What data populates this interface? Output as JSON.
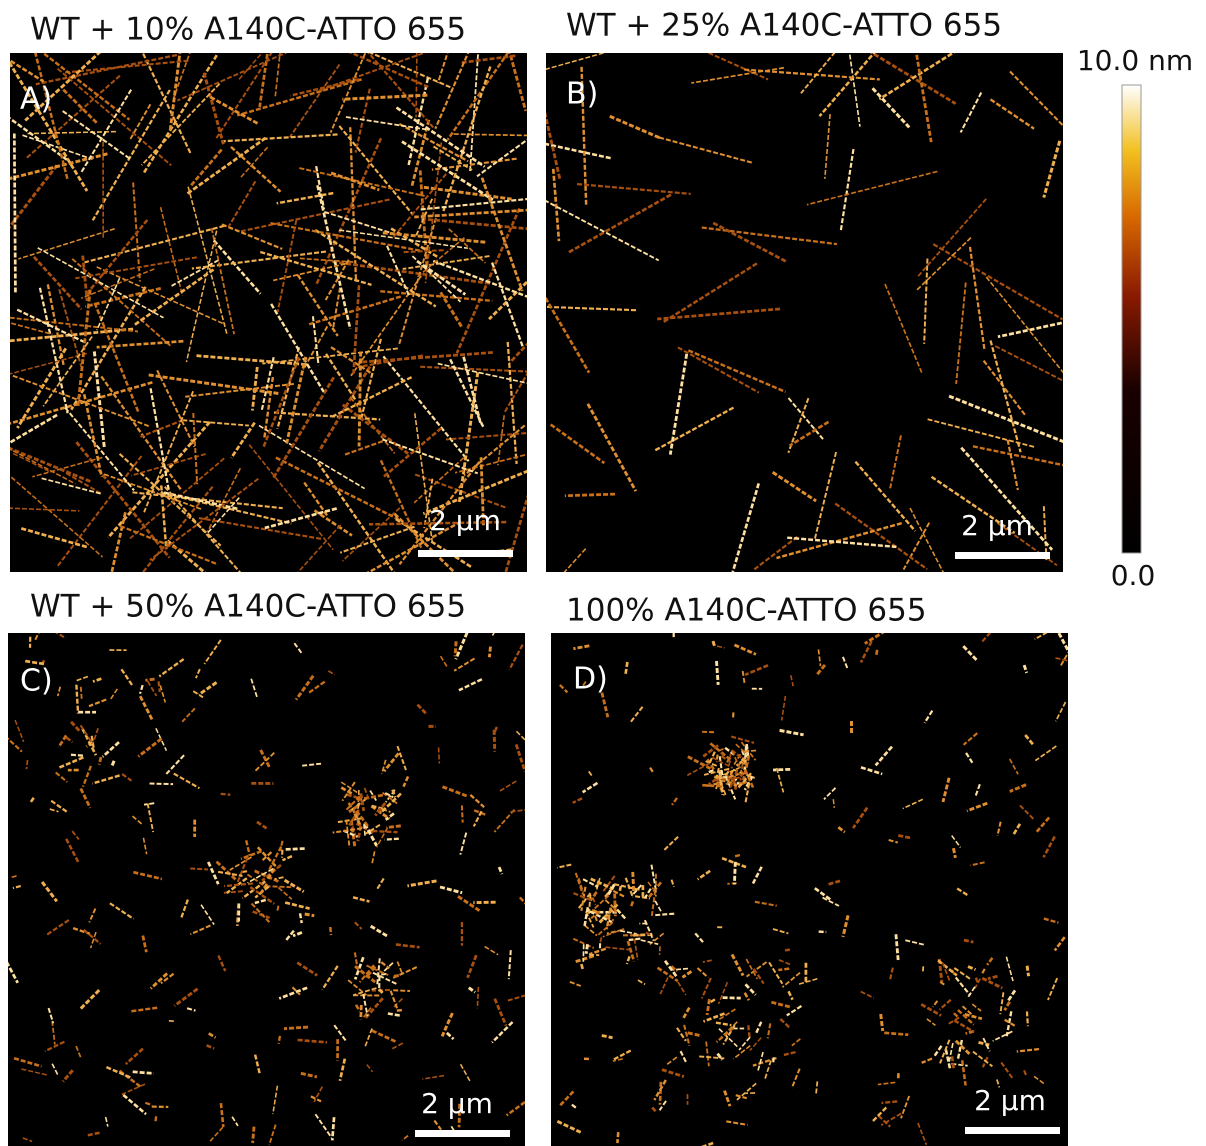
{
  "panels": [
    {
      "title": "WT + 10% A140C-ATTO 655",
      "label": "A)",
      "scale_bar": "2 µm"
    },
    {
      "title": "WT + 25% A140C-ATTO 655",
      "label": "B)",
      "scale_bar": "2 µm"
    },
    {
      "title": "WT + 50% A140C-ATTO 655",
      "label": "C)",
      "scale_bar": "2 µm"
    },
    {
      "title": "100% A140C-ATTO 655",
      "label": "D)",
      "scale_bar": "2 µm"
    }
  ],
  "colorbar": {
    "max_label": "10.0 nm",
    "min_label": "0.0"
  }
}
